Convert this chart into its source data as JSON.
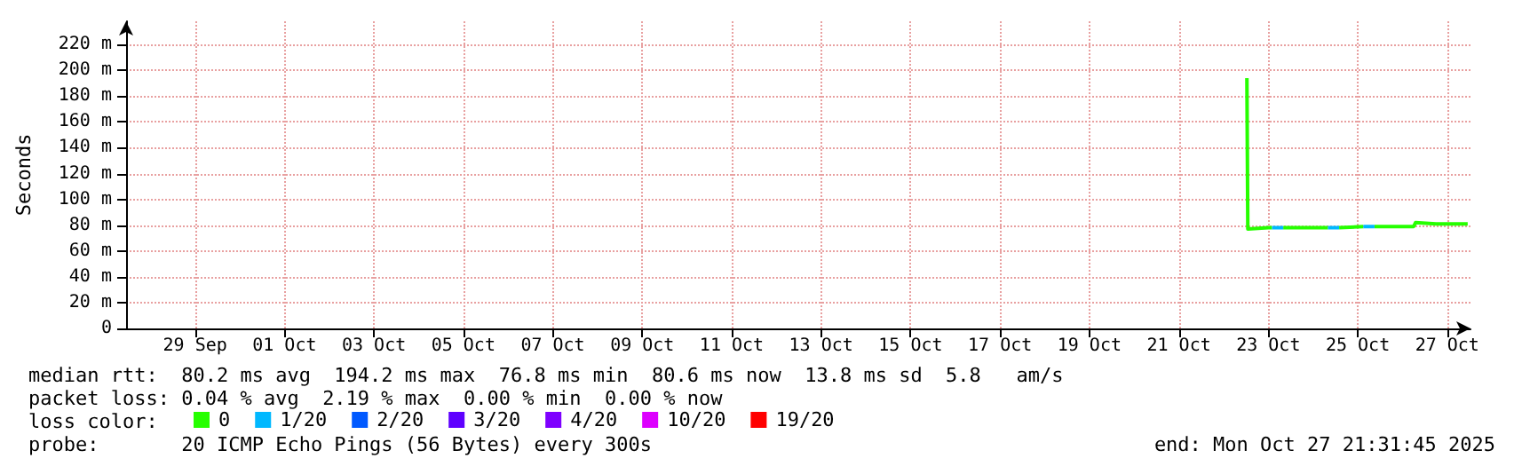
{
  "chart_data": {
    "type": "line",
    "ylabel": "Seconds",
    "xlim": [
      "2025-09-27T11:00",
      "2025-10-27T12:30"
    ],
    "xticks": [
      {
        "value": "2025-09-29",
        "label": "29 Sep"
      },
      {
        "value": "2025-10-01",
        "label": "01 Oct"
      },
      {
        "value": "2025-10-03",
        "label": "03 Oct"
      },
      {
        "value": "2025-10-05",
        "label": "05 Oct"
      },
      {
        "value": "2025-10-07",
        "label": "07 Oct"
      },
      {
        "value": "2025-10-09",
        "label": "09 Oct"
      },
      {
        "value": "2025-10-11",
        "label": "11 Oct"
      },
      {
        "value": "2025-10-13",
        "label": "13 Oct"
      },
      {
        "value": "2025-10-15",
        "label": "15 Oct"
      },
      {
        "value": "2025-10-17",
        "label": "17 Oct"
      },
      {
        "value": "2025-10-19",
        "label": "19 Oct"
      },
      {
        "value": "2025-10-21",
        "label": "21 Oct"
      },
      {
        "value": "2025-10-23",
        "label": "23 Oct"
      },
      {
        "value": "2025-10-25",
        "label": "25 Oct"
      },
      {
        "value": "2025-10-27",
        "label": "27 Oct"
      }
    ],
    "ylim": [
      0,
      238
    ],
    "yticks": [
      0,
      {
        "value": 20,
        "label": "20 m"
      },
      {
        "value": 40,
        "label": "40 m"
      },
      {
        "value": 60,
        "label": "60 m"
      },
      {
        "value": 80,
        "label": "80 m"
      },
      {
        "value": 100,
        "label": "100 m"
      },
      {
        "value": 120,
        "label": "120 m"
      },
      {
        "value": 140,
        "label": "140 m"
      },
      {
        "value": 160,
        "label": "160 m"
      },
      {
        "value": 180,
        "label": "180 m"
      },
      {
        "value": 200,
        "label": "200 m"
      },
      {
        "value": 220,
        "label": "220 m"
      }
    ],
    "grid": true,
    "legend": "bottom left",
    "legend_title": "loss color:",
    "marker": "none",
    "line_style": "solid",
    "series": [
      {
        "name": "0",
        "color": "#26ff00",
        "x": [
          "2025-10-22T12:30",
          "2025-10-22T13:00",
          "2025-10-23T00:00",
          "2025-10-23T02:00",
          "2025-10-23T03:00",
          "2025-10-23T08:00",
          "2025-10-24T08:00",
          "2025-10-24T10:00",
          "2025-10-24T14:00",
          "2025-10-25T03:00",
          "2025-10-25T05:00",
          "2025-10-25T09:00",
          "2025-10-26T06:00",
          "2025-10-26T07:00",
          "2025-10-26T18:00",
          "2025-10-27T11:00"
        ],
        "values": [
          194,
          77,
          78,
          78,
          null,
          78,
          78,
          null,
          78,
          79,
          null,
          79,
          79,
          82,
          81,
          81
        ]
      },
      {
        "name": "1/20",
        "color": "#00b8ff",
        "x": [
          "2025-10-23T02:00",
          "2025-10-23T08:00",
          "2025-10-23T09:00",
          "2025-10-24T08:00",
          "2025-10-24T14:00",
          "2025-10-24T15:00",
          "2025-10-25T03:00",
          "2025-10-25T09:00"
        ],
        "values": [
          78,
          78,
          null,
          78,
          78,
          null,
          79,
          79
        ]
      },
      {
        "name": "2/20",
        "color": "#0059ff"
      },
      {
        "name": "3/20",
        "color": "#5e00ff"
      },
      {
        "name": "4/20",
        "color": "#7e00ff"
      },
      {
        "name": "10/20",
        "color": "#dd00ff"
      },
      {
        "name": "19/20",
        "color": "#ff0000"
      }
    ],
    "annotations": [
      "median rtt:  80.2 ms avg  194.2 ms max  76.8 ms min  80.6 ms now  13.8 ms sd  5.8   am/s",
      "packet loss: 0.04 % avg  2.19 % max  0.00 % min  0.00 % now",
      "probe:       20 ICMP Echo Pings (56 Bytes) every 300s",
      "end: Mon Oct 27 21:31:45 2025"
    ]
  }
}
